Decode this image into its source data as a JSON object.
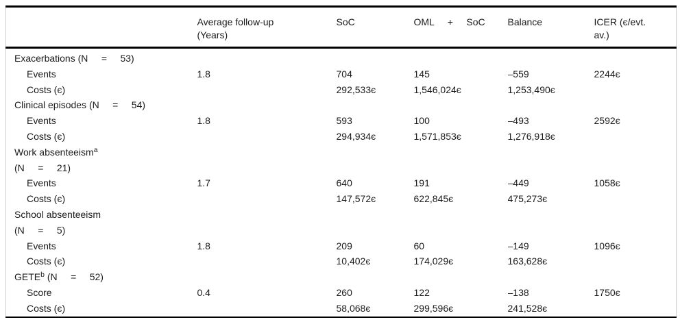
{
  "table": {
    "currency_symbol": "є",
    "columns": [
      {
        "id": "row-label",
        "lines": [
          ""
        ]
      },
      {
        "id": "follow-up",
        "lines": [
          "Average follow-up",
          "(Years)"
        ]
      },
      {
        "id": "soc",
        "lines": [
          "SoC"
        ]
      },
      {
        "id": "oml-soc",
        "lines": [
          "OML     +     SoC"
        ]
      },
      {
        "id": "balance",
        "lines": [
          "Balance"
        ]
      },
      {
        "id": "icer",
        "lines": [
          "ICER (є/evt.",
          "av.)"
        ]
      }
    ],
    "sections": [
      {
        "title_lines": [
          [
            {
              "text": "Exacerbations (N     =     53)"
            }
          ]
        ],
        "rows": [
          {
            "label": "Events",
            "cells": [
              "1.8",
              "704",
              "145",
              "–559",
              "2244є"
            ]
          },
          {
            "label": "Costs (є)",
            "cells": [
              "",
              "292,533є",
              "1,546,024є",
              "1,253,490є",
              ""
            ]
          }
        ]
      },
      {
        "title_lines": [
          [
            {
              "text": "Clinical episodes (N     =     54)"
            }
          ]
        ],
        "rows": [
          {
            "label": "Events",
            "cells": [
              "1.8",
              "593",
              "100",
              "–493",
              "2592є"
            ]
          },
          {
            "label": "Costs (є)",
            "cells": [
              "",
              "294,934є",
              "1,571,853є",
              "1,276,918є",
              ""
            ]
          }
        ]
      },
      {
        "title_lines": [
          [
            {
              "text": "Work absenteeism"
            },
            {
              "text": "a",
              "sup": true
            }
          ],
          [
            {
              "text": "(N     =     21)"
            }
          ]
        ],
        "rows": [
          {
            "label": "Events",
            "cells": [
              "1.7",
              "640",
              "191",
              "–449",
              "1058є"
            ]
          },
          {
            "label": "Costs (є)",
            "cells": [
              "",
              "147,572є",
              "622,845є",
              "475,273є",
              ""
            ]
          }
        ]
      },
      {
        "title_lines": [
          [
            {
              "text": "School absenteeism"
            }
          ],
          [
            {
              "text": "(N     =     5)"
            }
          ]
        ],
        "rows": [
          {
            "label": "Events",
            "cells": [
              "1.8",
              "209",
              "60",
              "–149",
              "1096є"
            ]
          },
          {
            "label": "Costs (є)",
            "cells": [
              "",
              "10,402є",
              "174,029є",
              "163,628є",
              ""
            ]
          }
        ]
      },
      {
        "title_lines": [
          [
            {
              "text": "GETE"
            },
            {
              "text": "b",
              "sup": true
            },
            {
              "text": " (N     =     52)"
            }
          ]
        ],
        "rows": [
          {
            "label": "Score",
            "cells": [
              "0.4",
              "260",
              "122",
              "–138",
              "1750є"
            ]
          },
          {
            "label": "Costs (є)",
            "cells": [
              "",
              "58,068є",
              "299,596є",
              "241,528є",
              ""
            ]
          }
        ]
      }
    ]
  }
}
